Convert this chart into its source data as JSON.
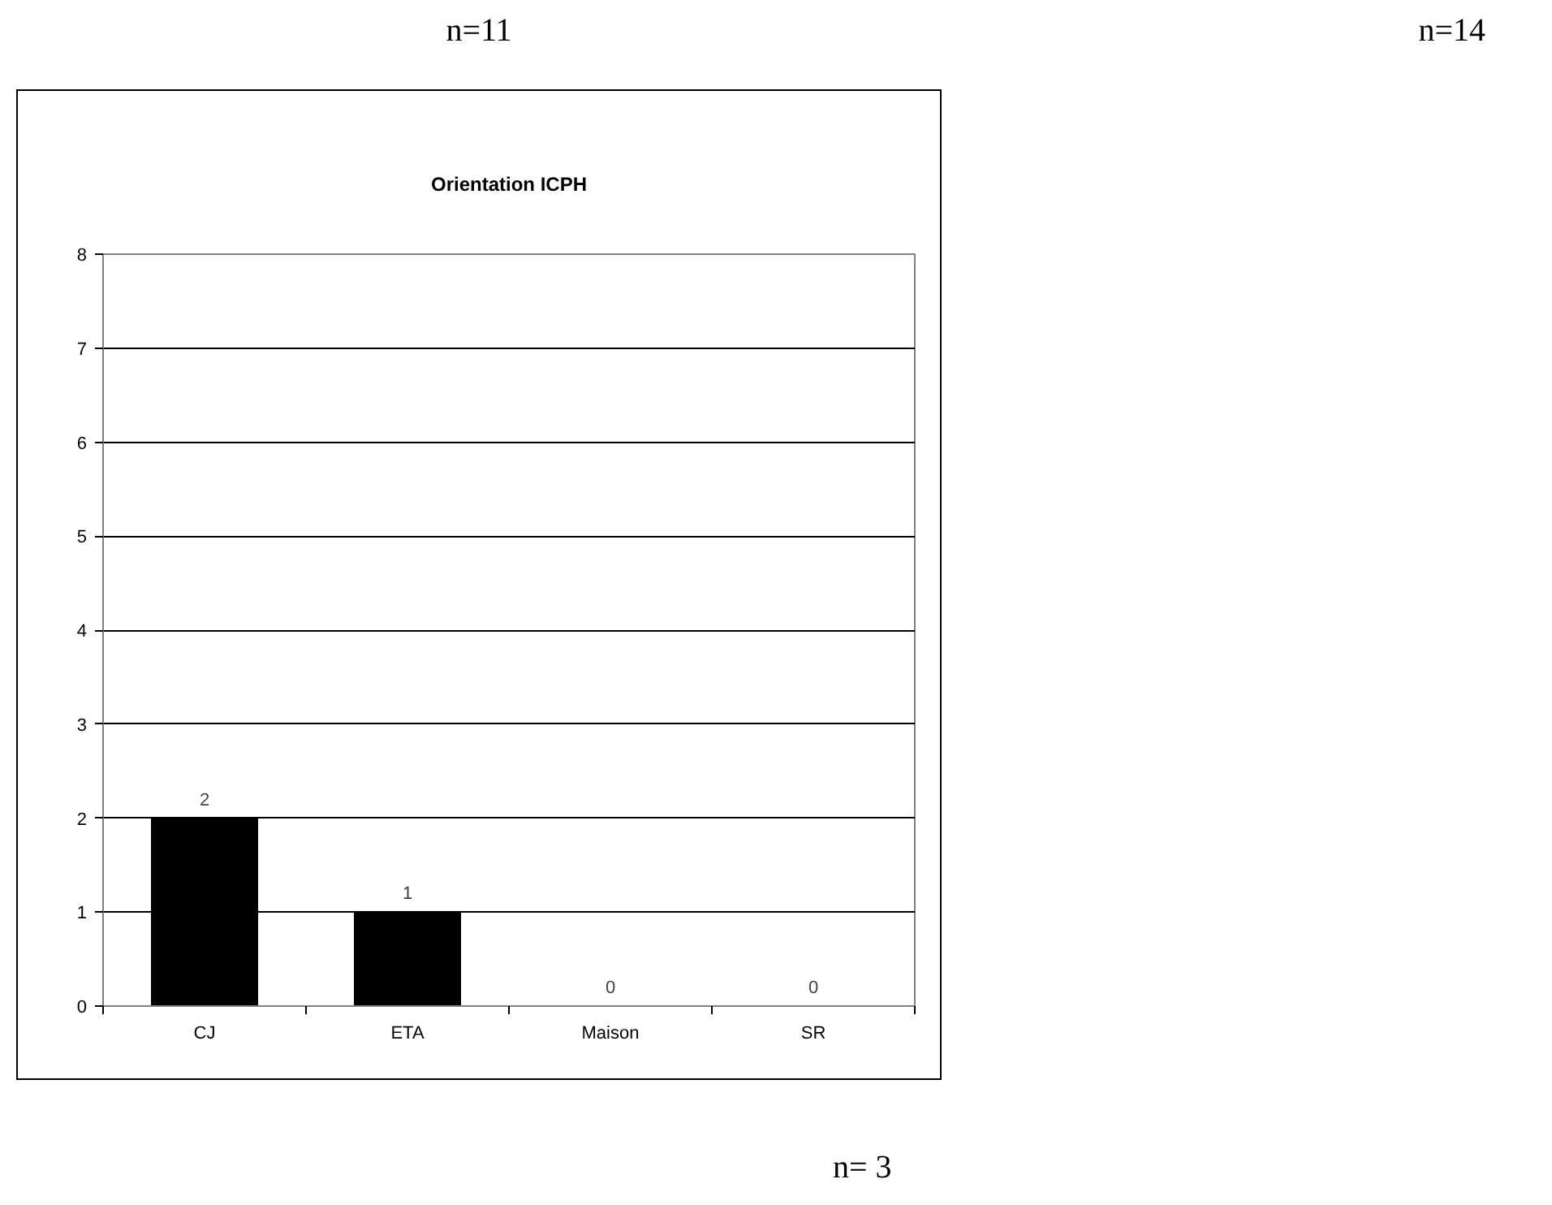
{
  "chart_data": {
    "type": "bar",
    "title": "Orientation ICPH",
    "categories": [
      "CJ",
      "ETA",
      "Maison",
      "SR"
    ],
    "values": [
      2,
      1,
      0,
      0
    ],
    "color": "#000000",
    "ylim": [
      0,
      8
    ],
    "yticks": [
      0,
      1,
      2,
      3,
      4,
      5,
      6,
      7,
      8
    ],
    "grid": "y",
    "data_labels": true,
    "annotations": [
      "n=11",
      "n=14",
      "n= 3"
    ]
  }
}
